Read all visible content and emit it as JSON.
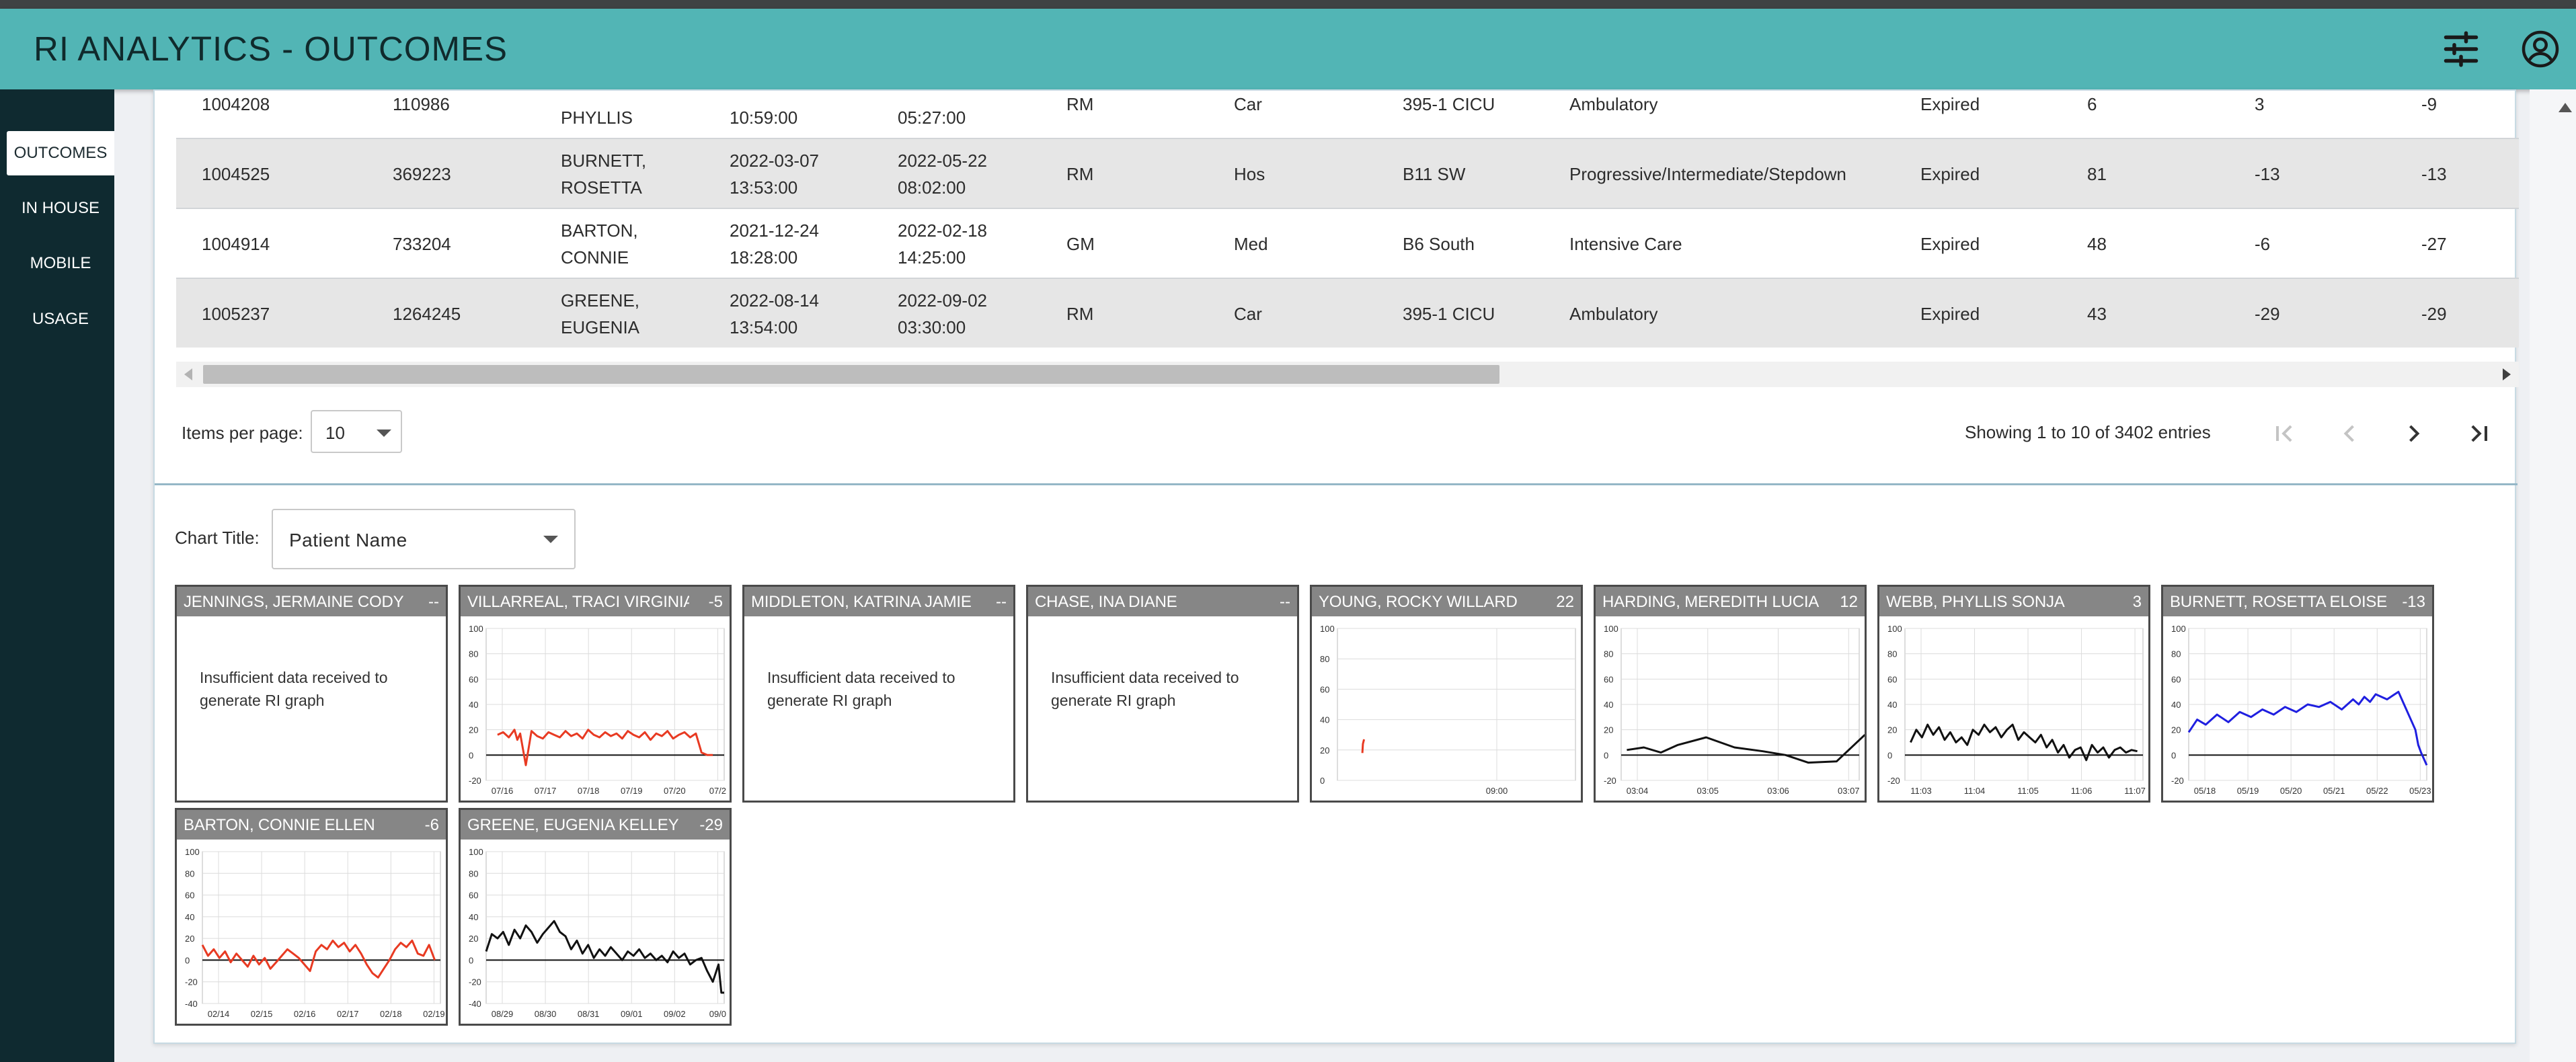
{
  "app": {
    "title": "RI ANALYTICS - OUTCOMES",
    "header_icons": [
      "sliders-icon",
      "account-circle-icon"
    ]
  },
  "sidebar": {
    "items": [
      {
        "label": "OUTCOMES",
        "active": true
      },
      {
        "label": "IN HOUSE",
        "active": false
      },
      {
        "label": "MOBILE",
        "active": false
      },
      {
        "label": "USAGE",
        "active": false
      }
    ]
  },
  "table": {
    "rows": [
      {
        "c1": "1004208",
        "c2": "110986",
        "c3a": "",
        "c3b": "PHYLLIS",
        "c4a": "",
        "c4b": "10:59:00",
        "c5a": "",
        "c5b": "05:27:00",
        "c6": "RM",
        "c7": "Car",
        "c8": "395-1 CICU",
        "c9": "Ambulatory",
        "c10": "Expired",
        "c11": "6",
        "c12": "3",
        "c13": "-9"
      },
      {
        "c1": "1004525",
        "c2": "369223",
        "c3a": "BURNETT,",
        "c3b": "ROSETTA",
        "c4a": "2022-03-07",
        "c4b": "13:53:00",
        "c5a": "2022-05-22",
        "c5b": "08:02:00",
        "c6": "RM",
        "c7": "Hos",
        "c8": "B11 SW",
        "c9": "Progressive/Intermediate/Stepdown",
        "c10": "Expired",
        "c11": "81",
        "c12": "-13",
        "c13": "-13"
      },
      {
        "c1": "1004914",
        "c2": "733204",
        "c3a": "BARTON,",
        "c3b": "CONNIE",
        "c4a": "2021-12-24",
        "c4b": "18:28:00",
        "c5a": "2022-02-18",
        "c5b": "14:25:00",
        "c6": "GM",
        "c7": "Med",
        "c8": "B6 South",
        "c9": "Intensive Care",
        "c10": "Expired",
        "c11": "48",
        "c12": "-6",
        "c13": "-27"
      },
      {
        "c1": "1005237",
        "c2": "1264245",
        "c3a": "GREENE,",
        "c3b": "EUGENIA",
        "c4a": "2022-08-14",
        "c4b": "13:54:00",
        "c5a": "2022-09-02",
        "c5b": "03:30:00",
        "c6": "RM",
        "c7": "Car",
        "c8": "395-1 CICU",
        "c9": "Ambulatory",
        "c10": "Expired",
        "c11": "43",
        "c12": "-29",
        "c13": "-29"
      }
    ]
  },
  "pagination": {
    "items_per_page_label": "Items per page:",
    "items_per_page_value": "10",
    "showing_text": "Showing 1 to 10 of 3402 entries"
  },
  "chart_controls": {
    "label": "Chart Title:",
    "value": "Patient Name"
  },
  "insufficient_msg": "Insufficient data received to generate RI graph",
  "chart_data": [
    {
      "type": "line",
      "title": "JENNINGS, JERMAINE CODY",
      "value": "--",
      "insufficient": true
    },
    {
      "type": "line",
      "title": "VILLARREAL, TRACI VIRGINIA",
      "value": "-5",
      "color": "#e83a22",
      "ylim": [
        -20,
        100
      ],
      "yticks": [
        100,
        80,
        60,
        40,
        20,
        0,
        -20
      ],
      "xticks": [
        "07/16",
        "07/17",
        "07/18",
        "07/19",
        "07/20",
        "07/2"
      ],
      "x": [
        0.2,
        0.3,
        0.4,
        0.5,
        0.55,
        0.6,
        0.7,
        0.8,
        0.9,
        1.0,
        1.1,
        1.2,
        1.3,
        1.4,
        1.5,
        1.6,
        1.7,
        1.8,
        1.9,
        2.0,
        2.1,
        2.2,
        2.3,
        2.4,
        2.5,
        2.6,
        2.7,
        2.8,
        2.9,
        3.0,
        3.1,
        3.2,
        3.3,
        3.4,
        3.5,
        3.6,
        3.7,
        3.8,
        3.9,
        4.0
      ],
      "y": [
        16,
        18,
        14,
        20,
        12,
        17,
        -8,
        19,
        15,
        13,
        18,
        16,
        14,
        19,
        15,
        17,
        13,
        20,
        16,
        14,
        18,
        15,
        17,
        13,
        19,
        16,
        14,
        18,
        12,
        17,
        15,
        19,
        13,
        16,
        18,
        14,
        17,
        2,
        0,
        0
      ]
    },
    {
      "type": "line",
      "title": "MIDDLETON, KATRINA JAMIE",
      "value": "--",
      "insufficient": true
    },
    {
      "type": "line",
      "title": "CHASE, INA DIANE",
      "value": "--",
      "insufficient": true
    },
    {
      "type": "line",
      "title": "YOUNG, ROCKY WILLARD",
      "value": "22",
      "color": "#e83a22",
      "ylim": [
        0,
        100
      ],
      "yticks": [
        100,
        80,
        60,
        40,
        20,
        0
      ],
      "xticks": [
        "09:00"
      ],
      "x": [
        0.44,
        0.45,
        0.47
      ],
      "y": [
        18,
        24,
        27
      ]
    },
    {
      "type": "line",
      "title": "HARDING, MEREDITH LUCIA",
      "value": "12",
      "color": "#111111",
      "ylim": [
        -20,
        100
      ],
      "yticks": [
        100,
        80,
        60,
        40,
        20,
        0,
        -20
      ],
      "xticks": [
        "03:04",
        "03:05",
        "03:06",
        "03:07"
      ],
      "x": [
        0.1,
        0.4,
        0.7,
        1.0,
        1.5,
        2.0,
        2.5,
        2.9,
        3.3,
        3.8,
        4.3
      ],
      "y": [
        4,
        6,
        2,
        8,
        14,
        6,
        3,
        0,
        -6,
        -5,
        16
      ]
    },
    {
      "type": "line",
      "title": "WEBB, PHYLLIS SONJA",
      "value": "3",
      "color": "#111111",
      "ylim": [
        -20,
        100
      ],
      "yticks": [
        100,
        80,
        60,
        40,
        20,
        0,
        -20
      ],
      "xticks": [
        "11:03",
        "11:04",
        "11:05",
        "11:06",
        "11:07"
      ],
      "x": [
        0.1,
        0.2,
        0.3,
        0.4,
        0.5,
        0.6,
        0.7,
        0.8,
        0.9,
        1.0,
        1.1,
        1.2,
        1.3,
        1.4,
        1.5,
        1.6,
        1.7,
        1.8,
        1.9,
        2.0,
        2.1,
        2.2,
        2.3,
        2.4,
        2.5,
        2.6,
        2.7,
        2.8,
        2.9,
        3.0,
        3.1,
        3.2,
        3.3,
        3.4,
        3.5,
        3.6,
        3.7,
        3.8,
        3.9,
        4.0,
        4.1
      ],
      "y": [
        10,
        20,
        14,
        24,
        16,
        22,
        12,
        18,
        10,
        14,
        8,
        20,
        16,
        24,
        18,
        22,
        14,
        20,
        24,
        12,
        18,
        14,
        10,
        16,
        6,
        12,
        2,
        8,
        -2,
        4,
        6,
        -4,
        8,
        2,
        6,
        -2,
        4,
        6,
        2,
        4,
        3
      ]
    },
    {
      "type": "line",
      "title": "BURNETT, ROSETTA ELOISE",
      "value": "-13",
      "color": "#1f1fe0",
      "ylim": [
        -20,
        100
      ],
      "yticks": [
        100,
        80,
        60,
        40,
        20,
        0,
        -20
      ],
      "xticks": [
        "05/18",
        "05/19",
        "05/20",
        "05/21",
        "05/22",
        "05/23"
      ],
      "x": [
        0.0,
        0.15,
        0.3,
        0.5,
        0.7,
        0.9,
        1.1,
        1.3,
        1.5,
        1.7,
        1.9,
        2.1,
        2.3,
        2.5,
        2.7,
        2.9,
        3.0,
        3.1,
        3.2,
        3.3,
        3.5,
        3.7,
        3.8,
        3.9,
        4.0,
        4.05,
        4.1,
        4.2
      ],
      "y": [
        18,
        28,
        24,
        32,
        26,
        34,
        30,
        36,
        32,
        38,
        34,
        40,
        38,
        42,
        36,
        44,
        40,
        46,
        42,
        48,
        44,
        50,
        40,
        30,
        20,
        8,
        2,
        -8
      ]
    },
    {
      "type": "line",
      "title": "BARTON, CONNIE ELLEN",
      "value": "-6",
      "color": "#e83a22",
      "ylim": [
        -40,
        100
      ],
      "yticks": [
        100,
        80,
        60,
        40,
        20,
        0,
        -20,
        -40
      ],
      "xticks": [
        "02/14",
        "02/15",
        "02/16",
        "02/17",
        "02/18",
        "02/19"
      ],
      "x": [
        0.0,
        0.1,
        0.2,
        0.3,
        0.4,
        0.5,
        0.6,
        0.7,
        0.8,
        0.9,
        1.0,
        1.1,
        1.2,
        1.3,
        1.4,
        1.5,
        1.6,
        1.7,
        1.8,
        1.9,
        2.0,
        2.1,
        2.2,
        2.3,
        2.4,
        2.5,
        2.6,
        2.7,
        2.8,
        2.9,
        3.0,
        3.1,
        3.2,
        3.3,
        3.4,
        3.5,
        3.6,
        3.7,
        3.8,
        3.9,
        4.0,
        4.1
      ],
      "y": [
        14,
        4,
        10,
        2,
        8,
        -2,
        6,
        0,
        -6,
        4,
        -4,
        2,
        -8,
        -2,
        4,
        10,
        6,
        2,
        -4,
        -10,
        8,
        14,
        10,
        18,
        12,
        16,
        8,
        14,
        6,
        -4,
        -12,
        -16,
        -8,
        0,
        10,
        16,
        12,
        18,
        6,
        4,
        14,
        0
      ]
    },
    {
      "type": "line",
      "title": "GREENE, EUGENIA KELLEY",
      "value": "-29",
      "color": "#111111",
      "ylim": [
        -40,
        100
      ],
      "yticks": [
        100,
        80,
        60,
        40,
        20,
        0,
        -20,
        -40
      ],
      "xticks": [
        "08/29",
        "08/30",
        "08/31",
        "09/01",
        "09/02",
        "09/0"
      ],
      "x": [
        0.0,
        0.1,
        0.2,
        0.3,
        0.4,
        0.5,
        0.6,
        0.7,
        0.8,
        0.9,
        1.0,
        1.1,
        1.2,
        1.3,
        1.4,
        1.5,
        1.6,
        1.7,
        1.8,
        1.9,
        2.0,
        2.1,
        2.2,
        2.3,
        2.4,
        2.5,
        2.6,
        2.7,
        2.8,
        2.9,
        3.0,
        3.1,
        3.2,
        3.3,
        3.4,
        3.5,
        3.6,
        3.7,
        3.8,
        3.9,
        4.0,
        4.1,
        4.15,
        4.2
      ],
      "y": [
        8,
        24,
        20,
        26,
        14,
        28,
        20,
        32,
        26,
        16,
        24,
        30,
        36,
        26,
        22,
        10,
        18,
        6,
        14,
        2,
        10,
        4,
        12,
        6,
        0,
        8,
        4,
        10,
        2,
        6,
        0,
        4,
        -2,
        8,
        2,
        6,
        -4,
        0,
        2,
        -10,
        -20,
        -4,
        -30,
        -30
      ]
    }
  ]
}
